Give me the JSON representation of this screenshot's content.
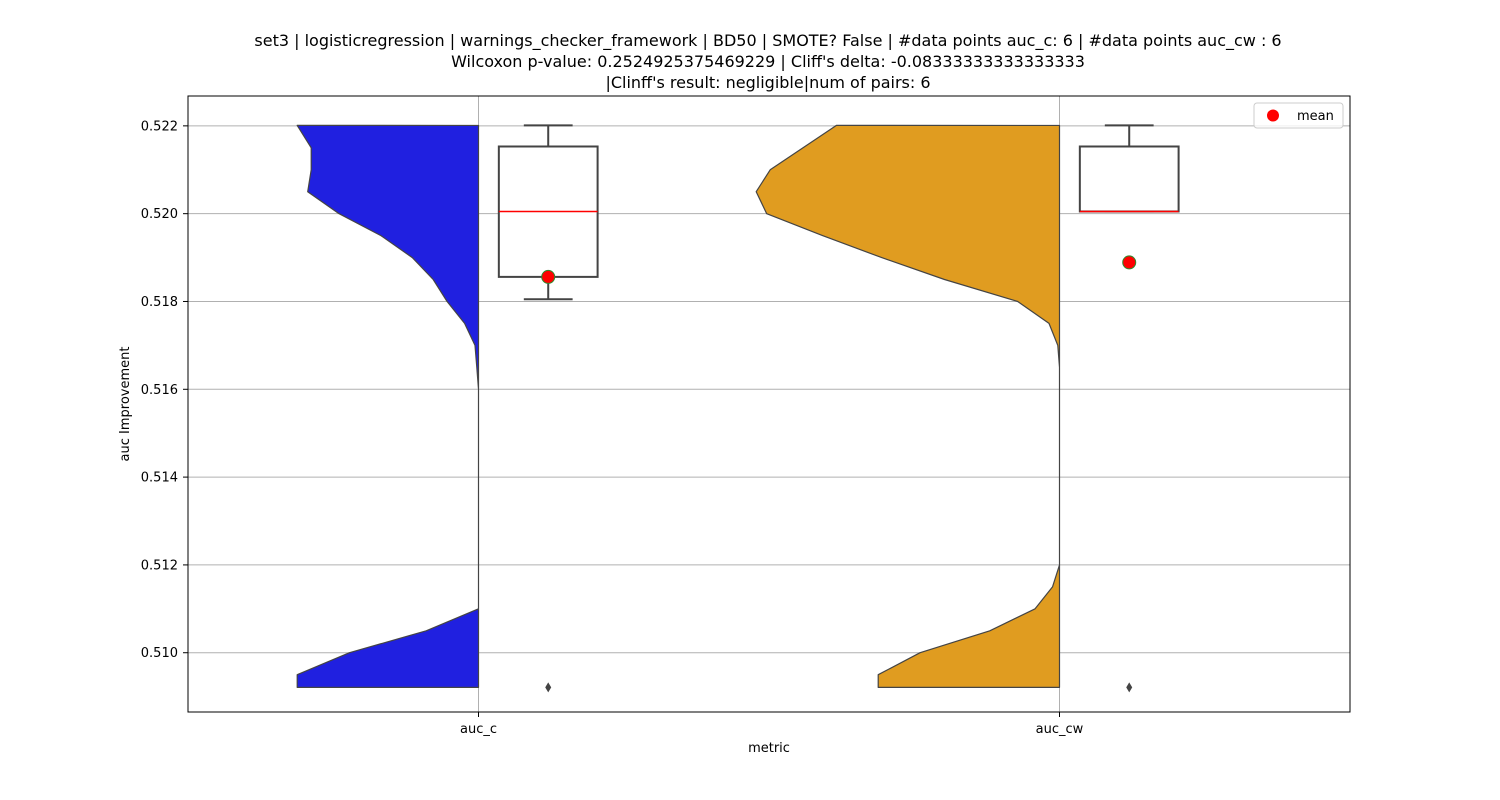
{
  "chart_data": {
    "type": "violin",
    "title_lines": [
      "set3 | logisticregression | warnings_checker_framework | BD50 | SMOTE? False | #data points auc_c: 6 | #data points auc_cw : 6",
      "Wilcoxon p-value: 0.2524925375469229 | Cliff's delta: -0.08333333333333333",
      "|Clinff's result: negligible|num of pairs: 6"
    ],
    "xlabel": "metric",
    "ylabel": "auc Improvement",
    "categories": [
      "auc_c",
      "auc_cw"
    ],
    "ylim": [
      0.50865,
      0.52268
    ],
    "yticks": [
      0.51,
      0.512,
      0.514,
      0.516,
      0.518,
      0.52,
      0.522
    ],
    "ytick_labels": [
      "0.510",
      "0.512",
      "0.514",
      "0.516",
      "0.518",
      "0.520",
      "0.522"
    ],
    "grid": true,
    "legend": {
      "position": "top-right",
      "entries": [
        {
          "label": "mean",
          "color": "#ff0000"
        }
      ]
    },
    "series": [
      {
        "name": "auc_c",
        "color": "#2020e0",
        "min": 0.50921,
        "max": 0.52201,
        "density_profile": [
          [
            0.52201,
            0.52
          ],
          [
            0.5215,
            0.48
          ],
          [
            0.521,
            0.48
          ],
          [
            0.5205,
            0.49
          ],
          [
            0.52,
            0.4
          ],
          [
            0.5195,
            0.28
          ],
          [
            0.519,
            0.19
          ],
          [
            0.5185,
            0.13
          ],
          [
            0.518,
            0.09
          ],
          [
            0.5175,
            0.04
          ],
          [
            0.517,
            0.01
          ],
          [
            0.5165,
            0.005
          ],
          [
            0.516,
            0.0
          ],
          [
            0.511,
            0.0
          ],
          [
            0.5105,
            0.15
          ],
          [
            0.51,
            0.37
          ],
          [
            0.5095,
            0.52
          ],
          [
            0.50921,
            0.52
          ]
        ],
        "box": {
          "q1": 0.51856,
          "median": 0.52005,
          "q3": 0.52153,
          "whisker_low": 0.51805,
          "whisker_high": 0.52201
        },
        "mean": 0.51856,
        "outliers": [
          0.50921
        ]
      },
      {
        "name": "auc_cw",
        "color": "#e09c20",
        "min": 0.50921,
        "max": 0.52201,
        "density_profile": [
          [
            0.52201,
            0.64
          ],
          [
            0.521,
            0.83
          ],
          [
            0.5205,
            0.87
          ],
          [
            0.52,
            0.84
          ],
          [
            0.5195,
            0.68
          ],
          [
            0.519,
            0.51
          ],
          [
            0.5185,
            0.33
          ],
          [
            0.518,
            0.12
          ],
          [
            0.5175,
            0.03
          ],
          [
            0.517,
            0.005
          ],
          [
            0.5165,
            0.0
          ],
          [
            0.512,
            0.0
          ],
          [
            0.5115,
            0.02
          ],
          [
            0.511,
            0.07
          ],
          [
            0.5105,
            0.2
          ],
          [
            0.51,
            0.4
          ],
          [
            0.5095,
            0.52
          ],
          [
            0.50921,
            0.52
          ]
        ],
        "box": {
          "q1": 0.52005,
          "median": 0.52005,
          "q3": 0.52153,
          "whisker_low": 0.52005,
          "whisker_high": 0.52201
        },
        "mean": 0.51889,
        "outliers": [
          0.50921
        ]
      }
    ]
  }
}
